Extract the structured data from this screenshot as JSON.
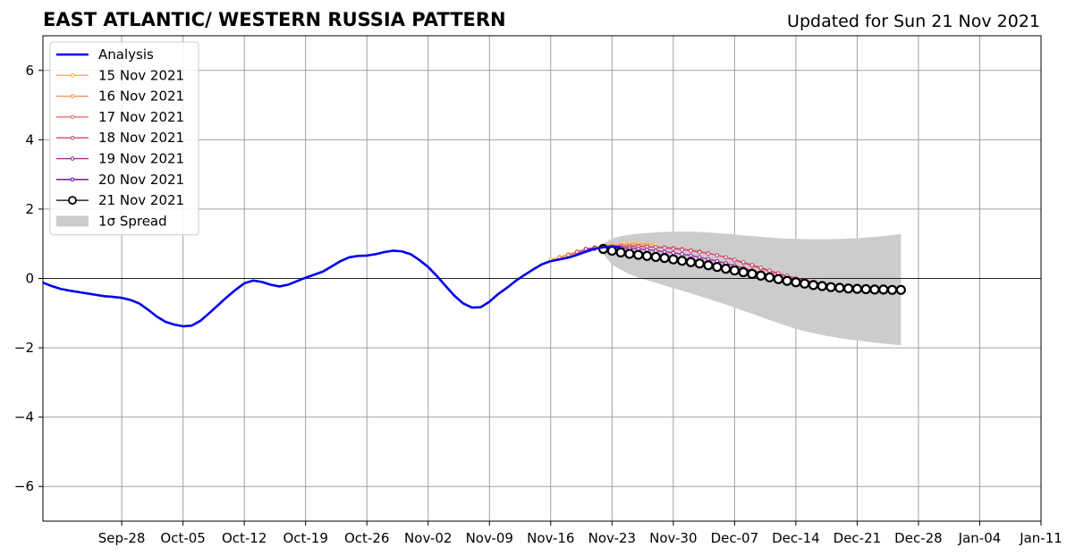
{
  "chart_data": {
    "type": "line",
    "title": "EAST ATLANTIC/ WESTERN RUSSIA PATTERN",
    "subtitle": "Updated for Sun 21 Nov 2021",
    "xlabel": "",
    "ylabel": "",
    "xlim": [
      "2021-09-19",
      "2022-01-11"
    ],
    "ylim": [
      -7,
      7
    ],
    "grid": true,
    "legend_position": "top-left",
    "x_ticks": [
      "Sep-28",
      "Oct-05",
      "Oct-12",
      "Oct-19",
      "Oct-26",
      "Nov-02",
      "Nov-09",
      "Nov-16",
      "Nov-23",
      "Nov-30",
      "Dec-07",
      "Dec-14",
      "Dec-21",
      "Dec-28",
      "Jan-04",
      "Jan-11"
    ],
    "x_tick_dates": [
      "2021-09-28",
      "2021-10-05",
      "2021-10-12",
      "2021-10-19",
      "2021-10-26",
      "2021-11-02",
      "2021-11-09",
      "2021-11-16",
      "2021-11-23",
      "2021-11-30",
      "2021-12-07",
      "2021-12-14",
      "2021-12-21",
      "2021-12-28",
      "2022-01-04",
      "2022-01-11"
    ],
    "y_ticks": [
      -6,
      -4,
      -2,
      0,
      2,
      4,
      6
    ],
    "y_tick_labels": [
      "−6",
      "−4",
      "−2",
      "0",
      "2",
      "4",
      "6"
    ],
    "analysis": {
      "name": "Analysis",
      "color": "#0000ee",
      "start_date": "2021-09-19",
      "values": [
        -0.12,
        -0.22,
        -0.3,
        -0.35,
        -0.39,
        -0.43,
        -0.47,
        -0.51,
        -0.53,
        -0.56,
        -0.62,
        -0.72,
        -0.9,
        -1.1,
        -1.25,
        -1.33,
        -1.38,
        -1.36,
        -1.22,
        -1.0,
        -0.77,
        -0.54,
        -0.33,
        -0.14,
        -0.06,
        -0.1,
        -0.18,
        -0.23,
        -0.18,
        -0.08,
        0.02,
        0.11,
        0.2,
        0.35,
        0.5,
        0.61,
        0.65,
        0.66,
        0.7,
        0.76,
        0.8,
        0.78,
        0.7,
        0.53,
        0.33,
        0.07,
        -0.22,
        -0.5,
        -0.72,
        -0.84,
        -0.83,
        -0.67,
        -0.45,
        -0.27,
        -0.07,
        0.1,
        0.26,
        0.41,
        0.5,
        0.55,
        0.6,
        0.68,
        0.77,
        0.85,
        0.9,
        0.92,
        0.9
      ]
    },
    "series": [
      {
        "name": "15 Nov 2021",
        "color": "#fdb42f",
        "start_date": "2021-11-16",
        "values": [
          0.55,
          0.62,
          0.7,
          0.78,
          0.85,
          0.9,
          0.95,
          0.98,
          1.0,
          1.02,
          1.02,
          1.0,
          0.98
        ]
      },
      {
        "name": "16 Nov 2021",
        "color": "#f48849",
        "start_date": "2021-11-17",
        "values": [
          0.6,
          0.67,
          0.73,
          0.8,
          0.86,
          0.9,
          0.94,
          0.96,
          0.97,
          0.97,
          0.96
        ]
      },
      {
        "name": "17 Nov 2021",
        "color": "#e16462",
        "start_date": "2021-11-18",
        "values": [
          0.68,
          0.74,
          0.8,
          0.85,
          0.89,
          0.92,
          0.93,
          0.93,
          0.93,
          0.92,
          0.91,
          0.9,
          0.88,
          0.85,
          0.82,
          0.78,
          0.73,
          0.67,
          0.6,
          0.52,
          0.44,
          0.36,
          0.28,
          0.2,
          0.12,
          0.05,
          -0.02,
          -0.08,
          -0.13,
          -0.17,
          -0.2,
          -0.23,
          -0.25
        ]
      },
      {
        "name": "18 Nov 2021",
        "color": "#cc4778",
        "start_date": "2021-11-19",
        "values": [
          0.77,
          0.82,
          0.86,
          0.89,
          0.91,
          0.92,
          0.92,
          0.92,
          0.91,
          0.9,
          0.88,
          0.86,
          0.83,
          0.8,
          0.76,
          0.72,
          0.67,
          0.61,
          0.54,
          0.47,
          0.39,
          0.31,
          0.23,
          0.15,
          0.08,
          0.01,
          -0.05,
          -0.1,
          -0.14,
          -0.18,
          -0.21,
          -0.23
        ]
      },
      {
        "name": "19 Nov 2021",
        "color": "#9c179e",
        "start_date": "2021-11-20",
        "values": [
          0.85,
          0.88,
          0.89,
          0.89,
          0.88,
          0.87,
          0.85,
          0.83,
          0.8,
          0.77,
          0.74,
          0.7,
          0.66,
          0.61,
          0.56,
          0.5,
          0.44,
          0.37,
          0.3,
          0.23,
          0.16,
          0.09,
          0.03,
          -0.03,
          -0.08,
          -0.12,
          -0.16,
          -0.19,
          -0.22,
          -0.24
        ]
      },
      {
        "name": "20 Nov 2021",
        "color": "#6a00a8",
        "start_date": "2021-11-21",
        "values": [
          0.88,
          0.86,
          0.84,
          0.81,
          0.78,
          0.75,
          0.72,
          0.68,
          0.64,
          0.6,
          0.55,
          0.5,
          0.45,
          0.39,
          0.33,
          0.27,
          0.21,
          0.15,
          0.09,
          0.03,
          -0.02,
          -0.07,
          -0.11,
          -0.15,
          -0.18,
          -0.21,
          -0.24,
          -0.26,
          -0.28
        ]
      },
      {
        "name": "21 Nov 2021",
        "color": "#000000",
        "start_date": "2021-11-22",
        "values": [
          0.85,
          0.8,
          0.75,
          0.71,
          0.68,
          0.65,
          0.62,
          0.59,
          0.55,
          0.51,
          0.47,
          0.43,
          0.38,
          0.33,
          0.28,
          0.23,
          0.18,
          0.13,
          0.08,
          0.03,
          -0.02,
          -0.07,
          -0.11,
          -0.15,
          -0.19,
          -0.22,
          -0.25,
          -0.27,
          -0.29,
          -0.3,
          -0.31,
          -0.32,
          -0.32,
          -0.33,
          -0.33
        ]
      }
    ],
    "spread": {
      "name": "1σ Spread",
      "color": "#cccccc",
      "start_date": "2021-11-22",
      "upper": [
        1.0,
        1.15,
        1.22,
        1.26,
        1.29,
        1.31,
        1.33,
        1.34,
        1.35,
        1.35,
        1.35,
        1.34,
        1.33,
        1.31,
        1.29,
        1.27,
        1.24,
        1.22,
        1.2,
        1.18,
        1.16,
        1.15,
        1.14,
        1.13,
        1.13,
        1.13,
        1.13,
        1.14,
        1.15,
        1.16,
        1.18,
        1.2,
        1.22,
        1.25,
        1.28
      ],
      "lower": [
        0.7,
        0.4,
        0.25,
        0.12,
        0.03,
        -0.05,
        -0.12,
        -0.2,
        -0.28,
        -0.35,
        -0.43,
        -0.51,
        -0.59,
        -0.67,
        -0.75,
        -0.84,
        -0.93,
        -1.02,
        -1.11,
        -1.2,
        -1.29,
        -1.37,
        -1.45,
        -1.52,
        -1.58,
        -1.63,
        -1.68,
        -1.72,
        -1.76,
        -1.79,
        -1.82,
        -1.85,
        -1.88,
        -1.9,
        -1.93
      ]
    }
  }
}
